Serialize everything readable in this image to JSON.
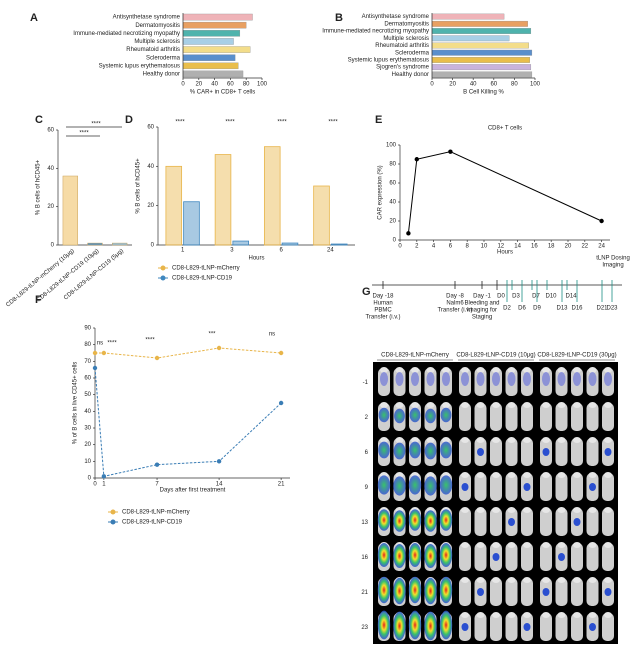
{
  "chart_data": [
    {
      "panel": "A",
      "type": "barh",
      "categories": [
        "Antisynthetase syndrome",
        "Dermatomyositis",
        "Immune-mediated necrotizing myopathy",
        "Multiple sclerosis",
        "Rheumatoid arthritis",
        "Scleroderma",
        "Systemic lupus erythematosus",
        "Healthy donor"
      ],
      "values": [
        88,
        80,
        72,
        64,
        85,
        66,
        70,
        76
      ],
      "colors": [
        "#efb3b8",
        "#e8a062",
        "#4fb3ad",
        "#a8cfe6",
        "#f3dd8a",
        "#5a8fcc",
        "#e9be4c",
        "#b0b0b0"
      ],
      "xlim": [
        0,
        100
      ],
      "xticks": [
        0,
        20,
        40,
        60,
        80,
        100
      ],
      "xlabel": "% CAR+ in CD8+ T cells"
    },
    {
      "panel": "B",
      "type": "barh",
      "categories": [
        "Antisynthetase syndrome",
        "Dermatomyositis",
        "Immune-mediated necrotizing myopathy",
        "Multiple sclerosis",
        "Rheumatoid arthritis",
        "Scleroderma",
        "Systemic lupus erythematosus",
        "Sjogren's syndrome",
        "Healthy donor"
      ],
      "values": [
        70,
        93,
        96,
        75,
        94,
        97,
        95,
        96,
        97
      ],
      "colors": [
        "#efb3b8",
        "#e8a062",
        "#4fb3ad",
        "#a8cfe6",
        "#f3dd8a",
        "#5a8fcc",
        "#e9be4c",
        "#c9b3dc",
        "#b0b0b0"
      ],
      "xlim": [
        0,
        100
      ],
      "xticks": [
        0,
        20,
        40,
        60,
        80,
        100
      ],
      "xlabel": "B Cell Killing %"
    },
    {
      "panel": "C",
      "type": "bar",
      "categories": [
        "CD8-L829-tLNP-mCherry (10μg)",
        "CD8-L829-tLNP-CD19 (10μg)",
        "CD8-L829-tLNP-CD19 (5μg)"
      ],
      "values": [
        36,
        1,
        1
      ],
      "colors": [
        "#f6dba6",
        "#4e8fc4",
        "#8fc0e3"
      ],
      "ylim": [
        0,
        60
      ],
      "yticks": [
        0,
        20,
        40,
        60
      ],
      "ylabel": "% B cells of hCD45+",
      "annotations": [
        "****",
        "****"
      ]
    },
    {
      "panel": "D",
      "type": "bar",
      "categories": [
        "1",
        "3",
        "6",
        "24"
      ],
      "series": [
        {
          "name": "CD8-L829-tLNP-mCherry",
          "color": "#e8b54a",
          "values": [
            40,
            46,
            50,
            30
          ]
        },
        {
          "name": "CD8-L829-tLNP-CD19",
          "color": "#3f87bf",
          "values": [
            22,
            2,
            1,
            0.5
          ]
        }
      ],
      "ylim": [
        0,
        60
      ],
      "yticks": [
        0,
        20,
        40,
        60
      ],
      "ylabel": "% B cells of hCD45+",
      "xlabel": "Hours",
      "annotations": [
        "****",
        "****",
        "****",
        "****"
      ]
    },
    {
      "panel": "E",
      "type": "line",
      "title": "CD8+ T cells",
      "x": [
        1,
        2,
        6,
        24
      ],
      "series": [
        {
          "color": "#000000",
          "values": [
            7,
            85,
            93,
            20
          ]
        }
      ],
      "xlim": [
        0,
        25
      ],
      "xticks": [
        0,
        2,
        4,
        6,
        8,
        10,
        12,
        14,
        16,
        18,
        20,
        22,
        24
      ],
      "ylim": [
        0,
        100
      ],
      "yticks": [
        0,
        20,
        40,
        60,
        80,
        100
      ],
      "xlabel": "Hours",
      "ylabel": "CAR expression (%)"
    },
    {
      "panel": "F",
      "type": "line",
      "line_style": "dashed",
      "x": [
        0,
        1,
        7,
        14,
        21
      ],
      "series": [
        {
          "name": "CD8-L829-tLNP-mCherry",
          "color": "#e8b54a",
          "values": [
            75,
            75,
            72,
            78,
            75
          ]
        },
        {
          "name": "CD8-L829-tLNP-CD19",
          "color": "#3a7db5",
          "values": [
            66,
            1,
            8,
            10,
            45
          ]
        }
      ],
      "xlim": [
        0,
        22
      ],
      "xticks": [
        0,
        1,
        7,
        14,
        21
      ],
      "ylim": [
        0,
        90
      ],
      "yticks": [
        0,
        10,
        20,
        30,
        40,
        50,
        60,
        70,
        80,
        90
      ],
      "xlabel": "Days after first treatment",
      "ylabel": "% of B cells in live CD45+ cells",
      "annotations": [
        "ns",
        "****",
        "****",
        "***",
        "ns"
      ]
    }
  ],
  "figure_g": {
    "panel": "G",
    "events": [
      [
        "Day -18",
        "Human",
        "PBMC",
        "Transfer (i.v.)"
      ],
      [
        "Day -8",
        "Nalm6",
        "Transfer (i.v.)"
      ],
      [
        "Day -1",
        "Bleeding and",
        "Imaging for",
        "Staging"
      ]
    ],
    "days": [
      "D0",
      "D3",
      "D7",
      "D10",
      "D14",
      "D2",
      "D6",
      "D9",
      "D13",
      "D16",
      "D21",
      "D23"
    ],
    "legend": [
      "tLNP Dosing",
      "Imaging"
    ],
    "columns": [
      "CD8-L829-tLNP-mCherry",
      "CD8-L829-tLNP-CD19 (10μg)",
      "CD8-L829-tLNP-CD19 (30μg)"
    ],
    "rows": [
      "-1",
      "2",
      "6",
      "9",
      "13",
      "16",
      "21",
      "23"
    ]
  }
}
